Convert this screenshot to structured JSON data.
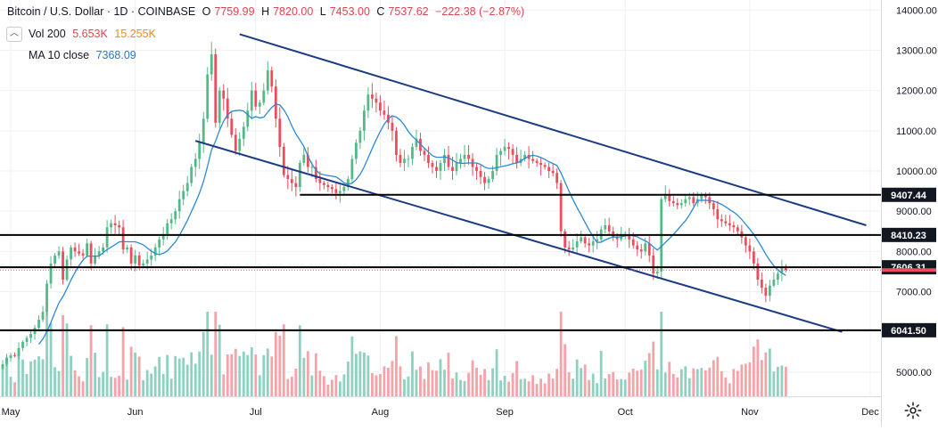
{
  "legend": {
    "symbol": "Bitcoin / U.S. Dollar · 1D · COINBASE",
    "open_label": "O",
    "open": "7759.99",
    "high_label": "H",
    "high": "7820.00",
    "low_label": "L",
    "low": "7453.00",
    "close_label": "C",
    "close": "7537.62",
    "change": "−222.38 (−2.87%)",
    "volume_label": "Vol 200",
    "volume_value": "5.653K",
    "volume_ma": "15.255K",
    "ma_label": "MA 10 close",
    "ma_value": "7368.09"
  },
  "colors": {
    "up": "#53b987",
    "down": "#eb4d5c",
    "up_vol": "#8fd1c0",
    "down_vol": "#f4a3a9",
    "ma": "#2a8ad2",
    "trendline": "#1c3b85",
    "level": "#000000",
    "grid": "#eef0f3"
  },
  "chart_data": {
    "type": "candlestick",
    "title": "Bitcoin / U.S. Dollar · 1D · COINBASE",
    "x_tick_labels": [
      "May",
      "Jun",
      "Jul",
      "Aug",
      "Sep",
      "Oct",
      "Nov",
      "Dec"
    ],
    "y_tick_labels": [
      "5000.00",
      "6000.00",
      "7000.00",
      "8000.00",
      "9000.00",
      "10000.00",
      "11000.00",
      "12000.00",
      "13000.00",
      "14000.00"
    ],
    "ylim": [
      4400,
      14250
    ],
    "horizontal_levels": [
      {
        "label": "9407.44",
        "value": 9407.44
      },
      {
        "label": "8410.23",
        "value": 8410.23
      },
      {
        "label": "7606.31",
        "value": 7606.31
      },
      {
        "label": "6041.50",
        "value": 6041.5
      }
    ],
    "current_price_line": 7537.62,
    "trendlines": [
      {
        "name": "upper channel",
        "points": [
          [
            "2019-06-27",
            13400
          ],
          [
            "2019-11-30",
            8650
          ]
        ]
      },
      {
        "name": "lower channel",
        "points": [
          [
            "2019-06-16",
            10750
          ],
          [
            "2019-11-24",
            6000
          ]
        ]
      }
    ],
    "support_segment": {
      "from": "2019-07-12",
      "to": "2019-11-30",
      "value": 9407.44
    },
    "series": [
      {
        "name": "price",
        "x_start": "2019-04-29",
        "close": [
          5200,
          5350,
          5420,
          5400,
          5600,
          5750,
          5850,
          5950,
          6100,
          6300,
          6500,
          7200,
          7700,
          7900,
          8000,
          7300,
          7800,
          8100,
          8000,
          7950,
          7900,
          8200,
          7700,
          7900,
          8000,
          8100,
          8600,
          8700,
          8650,
          8600,
          8050,
          8100,
          7700,
          7900,
          7650,
          7700,
          7800,
          7900,
          8100,
          8300,
          8400,
          8700,
          8800,
          9000,
          9300,
          9500,
          9700,
          10100,
          10300,
          10700,
          11300,
          12400,
          12900,
          11200,
          12000,
          11800,
          11300,
          10900,
          10500,
          10800,
          11100,
          11500,
          12000,
          11600,
          11700,
          12000,
          12500,
          12100,
          11300,
          10600,
          9900,
          9800,
          9700,
          9600,
          10200,
          10400,
          10100,
          10100,
          9800,
          9700,
          9650,
          9600,
          9550,
          9450,
          9500,
          9600,
          9800,
          10300,
          10700,
          11000,
          11500,
          11900,
          11800,
          11700,
          11500,
          11400,
          11200,
          11000,
          10400,
          10200,
          10300,
          10300,
          10600,
          10800,
          10500,
          10400,
          10200,
          10100,
          10000,
          10200,
          10400,
          10100,
          10000,
          10200,
          10300,
          10400,
          10300,
          10100,
          10000,
          9850,
          9700,
          9800,
          10000,
          10400,
          10500,
          10600,
          10550,
          10400,
          10200,
          10300,
          10400,
          10300,
          10250,
          10200,
          10150,
          10100,
          10000,
          9950,
          9700,
          8500,
          8100,
          8050,
          8100,
          8250,
          8350,
          8200,
          8150,
          8250,
          8300,
          8550,
          8650,
          8500,
          8350,
          8300,
          8400,
          8400,
          8300,
          8150,
          8050,
          8000,
          8200,
          7900,
          7450,
          7500,
          9300,
          9400,
          9250,
          9200,
          9150,
          9200,
          9300,
          9350,
          9200,
          9300,
          9400,
          9350,
          9200,
          9050,
          8800,
          8750,
          8700,
          8650,
          8600,
          8500,
          8350,
          8150,
          8000,
          7700,
          7300,
          7100,
          6900,
          7150,
          7300,
          7450,
          7600,
          7538
        ],
        "type": "candlestick"
      },
      {
        "name": "MA 10 close",
        "type": "line"
      },
      {
        "name": "Vol 200",
        "type": "bar"
      }
    ]
  }
}
